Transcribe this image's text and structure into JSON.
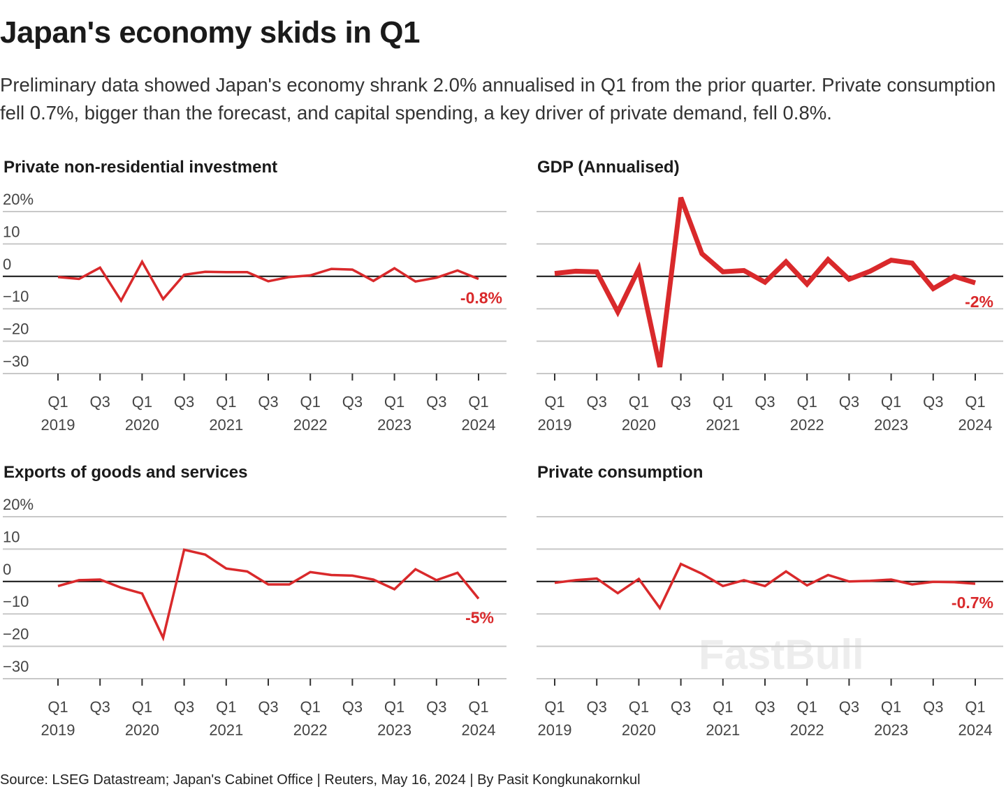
{
  "title": "Japan's economy skids in Q1",
  "subtitle": "Preliminary data showed Japan's economy shrank 2.0% annualised in Q1 from the prior quarter. Private consumption fell 0.7%, bigger than the forecast, and capital spending, a key driver of private demand, fell 0.8%.",
  "source": "Source: LSEG Datastream; Japan's Cabinet Office | Reuters, May 16, 2024 | By Pasit Kongkunakornkul",
  "watermark": "FastBull",
  "line_color": "#d9292b",
  "chart_data": [
    {
      "type": "line",
      "title": "Private non-residential investment",
      "ylim": [
        -30,
        20
      ],
      "yticks": [
        "20%",
        "10",
        "0",
        "-10",
        "-20",
        "-30"
      ],
      "show_ytick_labels": true,
      "grid": true,
      "x_tick_labels": [
        [
          "Q1",
          "2019"
        ],
        [
          "Q3",
          ""
        ],
        [
          "Q1",
          "2020"
        ],
        [
          "Q3",
          ""
        ],
        [
          "Q1",
          "2021"
        ],
        [
          "Q3",
          ""
        ],
        [
          "Q1",
          "2022"
        ],
        [
          "Q3",
          ""
        ],
        [
          "Q1",
          "2023"
        ],
        [
          "Q3",
          ""
        ],
        [
          "Q1",
          "2024"
        ]
      ],
      "x": [
        "Q1 2019",
        "Q2 2019",
        "Q3 2019",
        "Q4 2019",
        "Q1 2020",
        "Q2 2020",
        "Q3 2020",
        "Q4 2020",
        "Q1 2021",
        "Q2 2021",
        "Q3 2021",
        "Q4 2021",
        "Q1 2022",
        "Q2 2022",
        "Q3 2022",
        "Q4 2022",
        "Q1 2023",
        "Q2 2023",
        "Q3 2023",
        "Q4 2023",
        "Q1 2024"
      ],
      "values": [
        -0.2,
        -0.8,
        2.7,
        -7.5,
        4.5,
        -7.0,
        0.5,
        1.4,
        1.3,
        1.3,
        -1.5,
        -0.2,
        0.3,
        2.3,
        2.1,
        -1.4,
        2.5,
        -1.6,
        -0.4,
        1.8,
        -0.8
      ],
      "end_label": "-0.8%",
      "thick": false
    },
    {
      "type": "line",
      "title": "GDP (Annualised)",
      "ylim": [
        -30,
        20
      ],
      "yticks": [
        "20%",
        "10",
        "0",
        "-10",
        "-20",
        "-30"
      ],
      "show_ytick_labels": false,
      "grid": true,
      "x_tick_labels": [
        [
          "Q1",
          "2019"
        ],
        [
          "Q3",
          ""
        ],
        [
          "Q1",
          "2020"
        ],
        [
          "Q3",
          ""
        ],
        [
          "Q1",
          "2021"
        ],
        [
          "Q3",
          ""
        ],
        [
          "Q1",
          "2022"
        ],
        [
          "Q3",
          ""
        ],
        [
          "Q1",
          "2023"
        ],
        [
          "Q3",
          ""
        ],
        [
          "Q1",
          "2024"
        ]
      ],
      "x": [
        "Q1 2019",
        "Q2 2019",
        "Q3 2019",
        "Q4 2019",
        "Q1 2020",
        "Q2 2020",
        "Q3 2020",
        "Q4 2020",
        "Q1 2021",
        "Q2 2021",
        "Q3 2021",
        "Q4 2021",
        "Q1 2022",
        "Q2 2022",
        "Q3 2022",
        "Q4 2022",
        "Q1 2023",
        "Q2 2023",
        "Q3 2023",
        "Q4 2023",
        "Q1 2024"
      ],
      "values": [
        0.9,
        1.6,
        1.4,
        -11.0,
        2.3,
        -28.0,
        24.3,
        7.0,
        1.4,
        1.8,
        -1.8,
        4.5,
        -2.4,
        5.2,
        -0.9,
        1.6,
        5.0,
        4.1,
        -3.8,
        0.0,
        -2.0
      ],
      "end_label": "-2%",
      "thick": true
    },
    {
      "type": "line",
      "title": "Exports of goods and services",
      "ylim": [
        -30,
        20
      ],
      "yticks": [
        "20%",
        "10",
        "0",
        "-10",
        "-20",
        "-30"
      ],
      "show_ytick_labels": true,
      "grid": true,
      "x_tick_labels": [
        [
          "Q1",
          "2019"
        ],
        [
          "Q3",
          ""
        ],
        [
          "Q1",
          "2020"
        ],
        [
          "Q3",
          ""
        ],
        [
          "Q1",
          "2021"
        ],
        [
          "Q3",
          ""
        ],
        [
          "Q1",
          "2022"
        ],
        [
          "Q3",
          ""
        ],
        [
          "Q1",
          "2023"
        ],
        [
          "Q3",
          ""
        ],
        [
          "Q1",
          "2024"
        ]
      ],
      "x": [
        "Q1 2019",
        "Q2 2019",
        "Q3 2019",
        "Q4 2019",
        "Q1 2020",
        "Q2 2020",
        "Q3 2020",
        "Q4 2020",
        "Q1 2021",
        "Q2 2021",
        "Q3 2021",
        "Q4 2021",
        "Q1 2022",
        "Q2 2022",
        "Q3 2022",
        "Q4 2022",
        "Q1 2023",
        "Q2 2023",
        "Q3 2023",
        "Q4 2023",
        "Q1 2024"
      ],
      "values": [
        -1.4,
        0.4,
        0.6,
        -1.9,
        -3.7,
        -17.4,
        9.8,
        8.3,
        4.0,
        3.1,
        -0.9,
        -0.9,
        2.9,
        2.0,
        1.8,
        0.6,
        -2.4,
        3.8,
        0.4,
        2.7,
        -5.3
      ],
      "end_label": "-5%",
      "thick": false
    },
    {
      "type": "line",
      "title": "Private consumption",
      "ylim": [
        -30,
        20
      ],
      "yticks": [
        "20%",
        "10",
        "0",
        "-10",
        "-20",
        "-30"
      ],
      "show_ytick_labels": false,
      "grid": true,
      "x_tick_labels": [
        [
          "Q1",
          "2019"
        ],
        [
          "Q3",
          ""
        ],
        [
          "Q1",
          "2020"
        ],
        [
          "Q3",
          ""
        ],
        [
          "Q1",
          "2021"
        ],
        [
          "Q3",
          ""
        ],
        [
          "Q1",
          "2022"
        ],
        [
          "Q3",
          ""
        ],
        [
          "Q1",
          "2023"
        ],
        [
          "Q3",
          ""
        ],
        [
          "Q1",
          "2024"
        ]
      ],
      "x": [
        "Q1 2019",
        "Q2 2019",
        "Q3 2019",
        "Q4 2019",
        "Q1 2020",
        "Q2 2020",
        "Q3 2020",
        "Q4 2020",
        "Q1 2021",
        "Q2 2021",
        "Q3 2021",
        "Q4 2021",
        "Q1 2022",
        "Q2 2022",
        "Q3 2022",
        "Q4 2022",
        "Q1 2023",
        "Q2 2023",
        "Q3 2023",
        "Q4 2023",
        "Q1 2024"
      ],
      "values": [
        -0.4,
        0.4,
        0.9,
        -3.6,
        0.8,
        -8.2,
        5.4,
        2.4,
        -1.4,
        0.4,
        -1.4,
        3.1,
        -1.2,
        2.0,
        0.0,
        0.2,
        0.6,
        -0.9,
        -0.1,
        -0.2,
        -0.7
      ],
      "end_label": "-0.7%",
      "thick": false
    }
  ]
}
